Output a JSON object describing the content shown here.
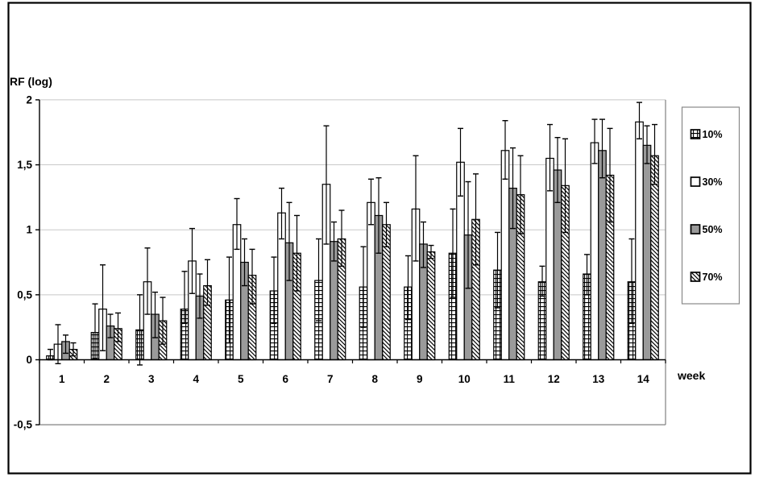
{
  "figure": {
    "y_axis_title": "RF (log)",
    "x_axis_title": "week"
  },
  "chart_data": {
    "type": "bar",
    "title": "",
    "ylabel": "RF (log)",
    "xlabel": "week",
    "ylim": [
      -0.5,
      2
    ],
    "yticks": [
      2,
      1.5,
      1,
      0.5,
      0,
      -0.5
    ],
    "ytick_labels": [
      "2",
      "1,5",
      "1",
      "0,5",
      "0",
      "-0,5"
    ],
    "grid": true,
    "legend_position": "right",
    "error_bars": true,
    "categories": [
      "1",
      "2",
      "3",
      "4",
      "5",
      "6",
      "7",
      "8",
      "9",
      "10",
      "11",
      "12",
      "13",
      "14"
    ],
    "series": [
      {
        "name": "10%",
        "pattern": "grid",
        "values": [
          0.03,
          0.21,
          0.23,
          0.39,
          0.46,
          0.53,
          0.61,
          0.56,
          0.56,
          0.82,
          0.69,
          0.6,
          0.66,
          0.6
        ],
        "err_low": [
          0.0,
          0.01,
          -0.04,
          0.28,
          0.13,
          0.28,
          0.3,
          0.25,
          0.31,
          0.48,
          0.4,
          0.49,
          0.5,
          0.28
        ],
        "err_high": [
          0.08,
          0.43,
          0.5,
          0.68,
          0.79,
          0.79,
          0.93,
          0.87,
          0.8,
          1.16,
          0.98,
          0.72,
          0.81,
          0.93
        ]
      },
      {
        "name": "30%",
        "pattern": "white",
        "values": [
          0.12,
          0.39,
          0.6,
          0.76,
          1.04,
          1.13,
          1.35,
          1.21,
          1.16,
          1.52,
          1.61,
          1.55,
          1.67,
          1.83
        ],
        "err_low": [
          -0.03,
          0.07,
          0.35,
          0.51,
          0.85,
          0.93,
          0.89,
          1.04,
          0.76,
          1.26,
          1.39,
          1.3,
          1.51,
          1.7
        ],
        "err_high": [
          0.27,
          0.73,
          0.86,
          1.01,
          1.24,
          1.32,
          1.8,
          1.39,
          1.57,
          1.78,
          1.84,
          1.81,
          1.85,
          1.98
        ]
      },
      {
        "name": "50%",
        "pattern": "gray",
        "color": "#9a9a9a",
        "values": [
          0.14,
          0.26,
          0.35,
          0.49,
          0.75,
          0.9,
          0.91,
          1.11,
          0.89,
          0.96,
          1.32,
          1.46,
          1.61,
          1.65
        ],
        "err_low": [
          0.05,
          0.17,
          0.17,
          0.32,
          0.57,
          0.61,
          0.76,
          0.82,
          0.71,
          0.55,
          1.01,
          1.21,
          1.4,
          1.51
        ],
        "err_high": [
          0.19,
          0.35,
          0.52,
          0.66,
          0.93,
          1.21,
          1.06,
          1.4,
          1.06,
          1.37,
          1.63,
          1.71,
          1.85,
          1.8
        ]
      },
      {
        "name": "70%",
        "pattern": "diagonal",
        "values": [
          0.08,
          0.24,
          0.3,
          0.57,
          0.65,
          0.82,
          0.93,
          1.04,
          0.83,
          1.08,
          1.27,
          1.34,
          1.42,
          1.57
        ],
        "err_low": [
          0.03,
          0.14,
          0.12,
          0.42,
          0.43,
          0.53,
          0.72,
          0.87,
          0.78,
          0.73,
          0.97,
          0.98,
          1.06,
          1.35
        ],
        "err_high": [
          0.13,
          0.36,
          0.48,
          0.77,
          0.85,
          1.11,
          1.15,
          1.21,
          0.88,
          1.43,
          1.57,
          1.7,
          1.78,
          1.81
        ]
      }
    ]
  }
}
